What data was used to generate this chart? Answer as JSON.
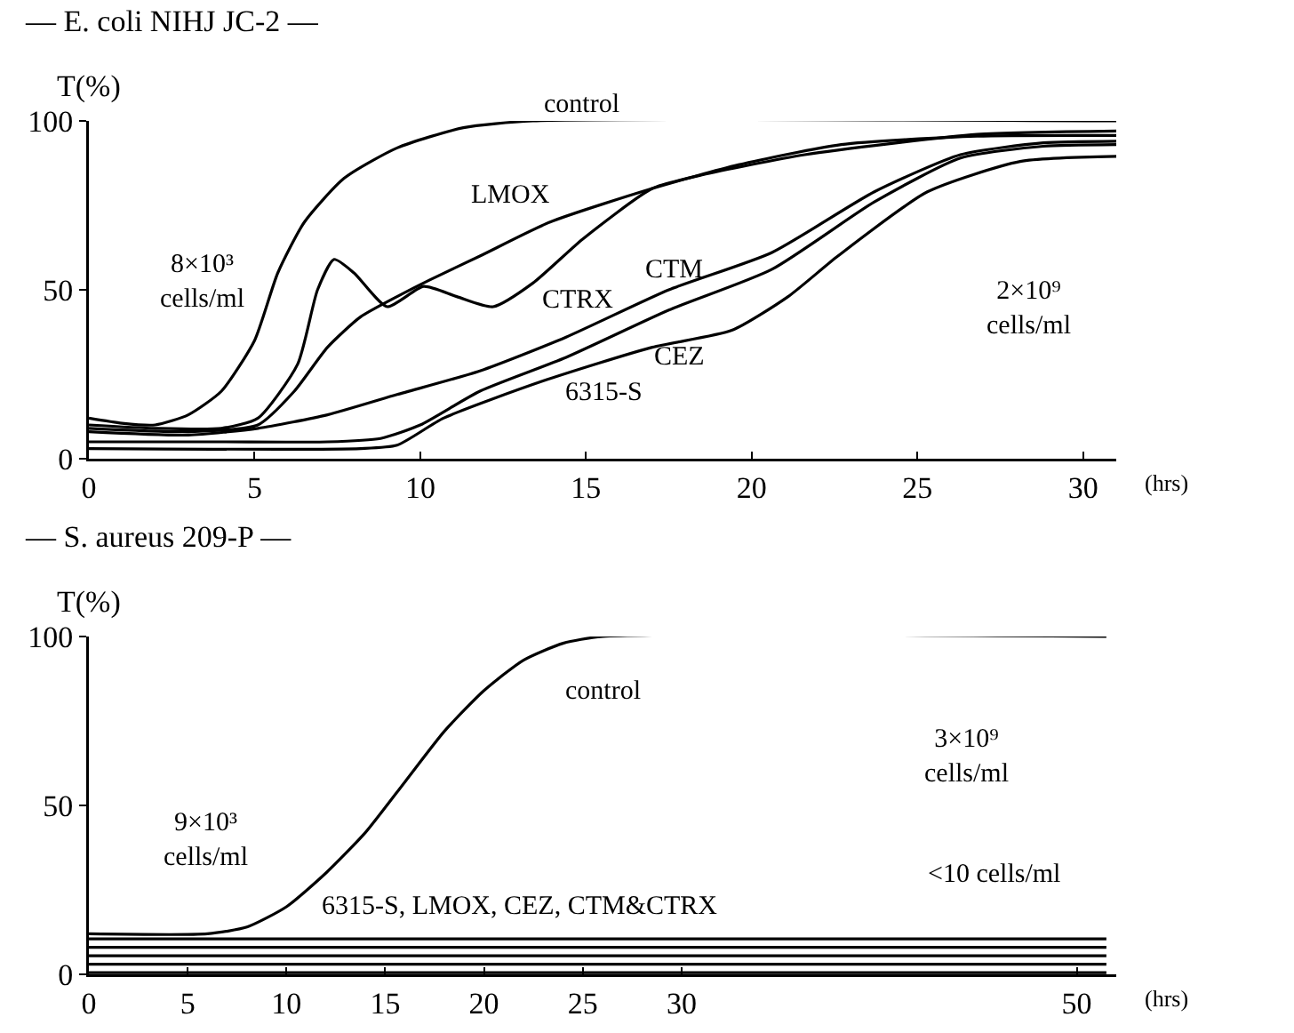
{
  "chart_data": [
    {
      "type": "line",
      "title": "— E. coli NIHJ JC-2 —",
      "ylabel": "T(%)",
      "xlabel": "(hrs)",
      "xlim": [
        0,
        31
      ],
      "xticks": [
        0,
        5,
        10,
        15,
        20,
        25,
        30
      ],
      "ylim": [
        0,
        100
      ],
      "yticks": [
        0,
        50,
        100
      ],
      "grid": false,
      "marker": "none",
      "line_style": "solid",
      "series": [
        {
          "color": "#000000",
          "x": [
            0,
            1,
            2,
            3,
            4,
            5,
            5.7,
            6.5,
            7.7,
            9.3,
            11.3,
            13.4,
            31
          ],
          "values": [
            12,
            10.5,
            10,
            13,
            20,
            35,
            55,
            70,
            83,
            92,
            98,
            100,
            100
          ]
        },
        {
          "color": "#000000",
          "x": [
            0,
            2,
            4,
            5.1,
            6.3,
            6.9,
            7.4,
            8,
            9,
            10.1,
            11.1,
            12.2,
            13.4,
            14.9,
            17,
            18.5,
            21.6,
            26.8,
            31
          ],
          "values": [
            10,
            9,
            9,
            12,
            28,
            50,
            59,
            55,
            45,
            51,
            48,
            45,
            52,
            65,
            80,
            84,
            90,
            96,
            97
          ]
        },
        {
          "color": "#000000",
          "x": [
            0,
            3,
            5.1,
            6.2,
            7.2,
            8.2,
            9.3,
            10.3,
            11.8,
            13.9,
            17,
            19.6,
            22.7,
            26.8,
            31
          ],
          "values": [
            9,
            8,
            10,
            20,
            33,
            42,
            48,
            53,
            60,
            70,
            80,
            87,
            93,
            95.5,
            95.7
          ]
        },
        {
          "color": "#000000",
          "x": [
            0,
            3,
            5.1,
            7.2,
            9.3,
            11.8,
            14.4,
            17.5,
            20.6,
            23.7,
            26.3,
            28.8,
            31
          ],
          "values": [
            8,
            7,
            9,
            13,
            19,
            26,
            36,
            50,
            61,
            79,
            90,
            93.5,
            94
          ]
        },
        {
          "color": "#000000",
          "x": [
            0,
            4,
            7.2,
            8.8,
            10,
            11.8,
            14.4,
            17.5,
            20.6,
            23.7,
            26.3,
            28.8,
            31
          ],
          "values": [
            5,
            5,
            5,
            6,
            10,
            20,
            30,
            44,
            56,
            76,
            89,
            92.5,
            93
          ]
        },
        {
          "color": "#000000",
          "x": [
            0,
            8.2,
            9.3,
            10.7,
            13.7,
            17,
            19.4,
            21.1,
            22.6,
            25.3,
            28.1,
            31
          ],
          "values": [
            3,
            3,
            4,
            12,
            23,
            33,
            38,
            48,
            60,
            79,
            88,
            89.5
          ]
        }
      ],
      "annotations": [
        "control",
        "LMOX",
        "CTM",
        "CTRX",
        "CEZ",
        "6315-S",
        "8×10³\ncells/ml",
        "2×10⁹\ncells/ml"
      ]
    },
    {
      "type": "line",
      "title": "— S. aureus 209-P —",
      "ylabel": "T(%)",
      "xlabel": "(hrs)",
      "xlim": [
        0,
        52
      ],
      "xticks": [
        0,
        5,
        10,
        15,
        20,
        25,
        30,
        50
      ],
      "ylim": [
        0,
        100
      ],
      "yticks": [
        0,
        50,
        100
      ],
      "grid": false,
      "marker": "none",
      "line_style": "solid",
      "series": [
        {
          "color": "#000000",
          "x": [
            0,
            6,
            8,
            10,
            12,
            14,
            16,
            18,
            20,
            22,
            24,
            26,
            51.5
          ],
          "values": [
            12,
            12,
            14,
            20,
            30,
            42,
            57,
            72,
            84,
            93,
            98,
            100,
            100
          ]
        },
        {
          "color": "#000000",
          "x": [
            0,
            51.5
          ],
          "values": [
            10.5,
            10.5
          ]
        },
        {
          "color": "#000000",
          "x": [
            0,
            51.5
          ],
          "values": [
            8,
            8
          ]
        },
        {
          "color": "#000000",
          "x": [
            0,
            51.5
          ],
          "values": [
            5.5,
            5.5
          ]
        },
        {
          "color": "#000000",
          "x": [
            0,
            51.5
          ],
          "values": [
            3,
            3
          ]
        },
        {
          "color": "#000000",
          "x": [
            0,
            51.5
          ],
          "values": [
            0.5,
            0.5
          ]
        }
      ],
      "annotations": [
        "control",
        "3×10⁹\ncells/ml",
        "9×10³\ncells/ml",
        "6315-S, LMOX, CEZ, CTM&CTRX",
        "<10 cells/ml"
      ]
    }
  ]
}
